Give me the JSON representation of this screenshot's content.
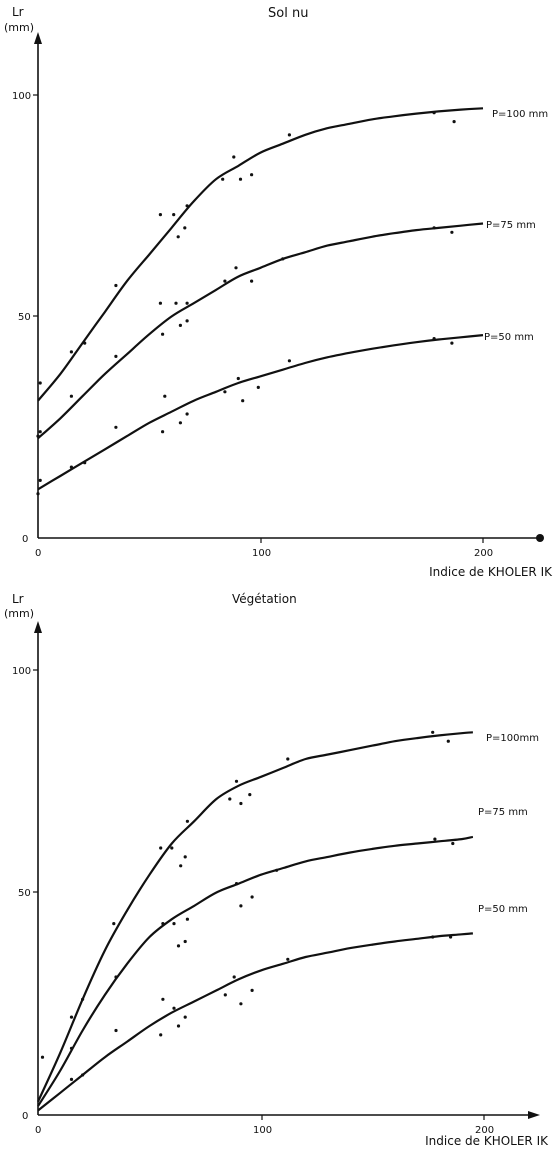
{
  "chart_data": [
    {
      "type": "line",
      "title": "Sol nu",
      "ylabel": "Lr\n(mm)",
      "xlabel": "Indice de KHOLER IK",
      "xlim": [
        0,
        230
      ],
      "ylim": [
        0,
        100
      ],
      "xticks": [
        "0",
        "100",
        "200"
      ],
      "yticks": [
        "0",
        "50",
        "100"
      ],
      "series": [
        {
          "name": "P=100 mm",
          "x": [
            0,
            10,
            20,
            30,
            40,
            50,
            60,
            70,
            80,
            90,
            100,
            110,
            120,
            130,
            140,
            150,
            160,
            170,
            180,
            190,
            200
          ],
          "values": [
            31,
            37,
            44,
            51,
            58,
            64,
            70,
            76,
            81,
            84,
            87,
            89,
            91,
            92.5,
            93.5,
            94.5,
            95.2,
            95.8,
            96.3,
            96.7,
            97
          ]
        },
        {
          "name": "P=75 mm",
          "x": [
            0,
            10,
            20,
            30,
            40,
            50,
            60,
            70,
            80,
            90,
            100,
            110,
            120,
            130,
            140,
            150,
            160,
            170,
            180,
            190,
            200
          ],
          "values": [
            22.5,
            27,
            32,
            37,
            41.5,
            46,
            50,
            53,
            56,
            59,
            61,
            63,
            64.5,
            66,
            67,
            68,
            68.8,
            69.5,
            70,
            70.5,
            71
          ]
        },
        {
          "name": "P=50 mm",
          "x": [
            0,
            10,
            20,
            30,
            40,
            50,
            60,
            70,
            80,
            90,
            100,
            110,
            120,
            130,
            140,
            150,
            160,
            170,
            180,
            190,
            200
          ],
          "values": [
            11,
            14,
            17,
            20,
            23,
            26,
            28.5,
            31,
            33,
            35,
            36.5,
            38,
            39.5,
            40.8,
            41.8,
            42.7,
            43.5,
            44.2,
            44.8,
            45.3,
            45.8
          ]
        }
      ],
      "points": [
        [
          1,
          35
        ],
        [
          15,
          42
        ],
        [
          21,
          44
        ],
        [
          35,
          57
        ],
        [
          55,
          73
        ],
        [
          61,
          73
        ],
        [
          63,
          68
        ],
        [
          66,
          70
        ],
        [
          67,
          75
        ],
        [
          83,
          81
        ],
        [
          88,
          86
        ],
        [
          91,
          81
        ],
        [
          96,
          82
        ],
        [
          113,
          91
        ],
        [
          178,
          96
        ],
        [
          187,
          94
        ],
        [
          1,
          24
        ],
        [
          0,
          23
        ],
        [
          15,
          32
        ],
        [
          35,
          41
        ],
        [
          55,
          53
        ],
        [
          56,
          46
        ],
        [
          62,
          53
        ],
        [
          64,
          48
        ],
        [
          67,
          49
        ],
        [
          67,
          53
        ],
        [
          84,
          58
        ],
        [
          89,
          61
        ],
        [
          96,
          58
        ],
        [
          110,
          63
        ],
        [
          178,
          70
        ],
        [
          186,
          69
        ],
        [
          1,
          13
        ],
        [
          0,
          10
        ],
        [
          15,
          16
        ],
        [
          21,
          17
        ],
        [
          35,
          25
        ],
        [
          56,
          24
        ],
        [
          57,
          32
        ],
        [
          64,
          26
        ],
        [
          67,
          28
        ],
        [
          84,
          33
        ],
        [
          90,
          36
        ],
        [
          92,
          31
        ],
        [
          99,
          34
        ],
        [
          113,
          40
        ],
        [
          178,
          45
        ],
        [
          186,
          44
        ]
      ]
    },
    {
      "type": "line",
      "title": "Végétation",
      "ylabel": "Lr\n(mm)",
      "xlabel": "Indice de KHOLER IK",
      "xlim": [
        0,
        230
      ],
      "ylim": [
        0,
        100
      ],
      "xticks": [
        "0",
        "100",
        "200"
      ],
      "yticks": [
        "0",
        "50",
        "100"
      ],
      "series": [
        {
          "name": "P=100mm",
          "x": [
            0,
            10,
            20,
            30,
            40,
            50,
            60,
            70,
            80,
            90,
            100,
            110,
            120,
            130,
            140,
            150,
            160,
            170,
            180,
            190,
            195
          ],
          "values": [
            3,
            14,
            26,
            37,
            46,
            54,
            61,
            66,
            71,
            74,
            76,
            78,
            80,
            81,
            82,
            83,
            84,
            84.7,
            85.3,
            85.8,
            86
          ]
        },
        {
          "name": "P=75 mm",
          "x": [
            0,
            10,
            20,
            30,
            40,
            50,
            60,
            70,
            80,
            90,
            100,
            110,
            120,
            130,
            140,
            150,
            160,
            170,
            180,
            190,
            195
          ],
          "values": [
            2,
            10,
            19,
            27,
            34,
            40,
            44,
            47,
            50,
            52,
            54,
            55.5,
            57,
            58,
            59,
            59.8,
            60.5,
            61,
            61.5,
            62,
            62.5
          ]
        },
        {
          "name": "P=50 mm",
          "x": [
            0,
            10,
            20,
            30,
            40,
            50,
            60,
            70,
            80,
            90,
            100,
            110,
            120,
            130,
            140,
            150,
            160,
            170,
            180,
            190,
            195
          ],
          "values": [
            1,
            5,
            9,
            13,
            16.5,
            20,
            23,
            25.5,
            28,
            30.5,
            32.5,
            34,
            35.5,
            36.5,
            37.5,
            38.3,
            39,
            39.6,
            40.2,
            40.6,
            40.8
          ]
        }
      ],
      "points": [
        [
          2,
          13
        ],
        [
          15,
          22
        ],
        [
          20,
          26
        ],
        [
          34,
          43
        ],
        [
          55,
          60
        ],
        [
          60,
          60
        ],
        [
          64,
          56
        ],
        [
          66,
          58
        ],
        [
          67,
          66
        ],
        [
          86,
          71
        ],
        [
          89,
          75
        ],
        [
          91,
          70
        ],
        [
          95,
          72
        ],
        [
          112,
          80
        ],
        [
          177,
          86
        ],
        [
          184,
          84
        ],
        [
          15,
          15
        ],
        [
          35,
          31
        ],
        [
          56,
          43
        ],
        [
          61,
          43
        ],
        [
          63,
          38
        ],
        [
          66,
          39
        ],
        [
          67,
          44
        ],
        [
          89,
          52
        ],
        [
          91,
          47
        ],
        [
          96,
          49
        ],
        [
          107,
          55
        ],
        [
          178,
          62
        ],
        [
          186,
          61
        ],
        [
          15,
          8
        ],
        [
          20,
          9
        ],
        [
          35,
          19
        ],
        [
          55,
          18
        ],
        [
          56,
          26
        ],
        [
          61,
          24
        ],
        [
          63,
          20
        ],
        [
          66,
          22
        ],
        [
          84,
          27
        ],
        [
          88,
          31
        ],
        [
          91,
          25
        ],
        [
          96,
          28
        ],
        [
          112,
          35
        ],
        [
          177,
          40
        ],
        [
          185,
          40
        ]
      ]
    }
  ]
}
